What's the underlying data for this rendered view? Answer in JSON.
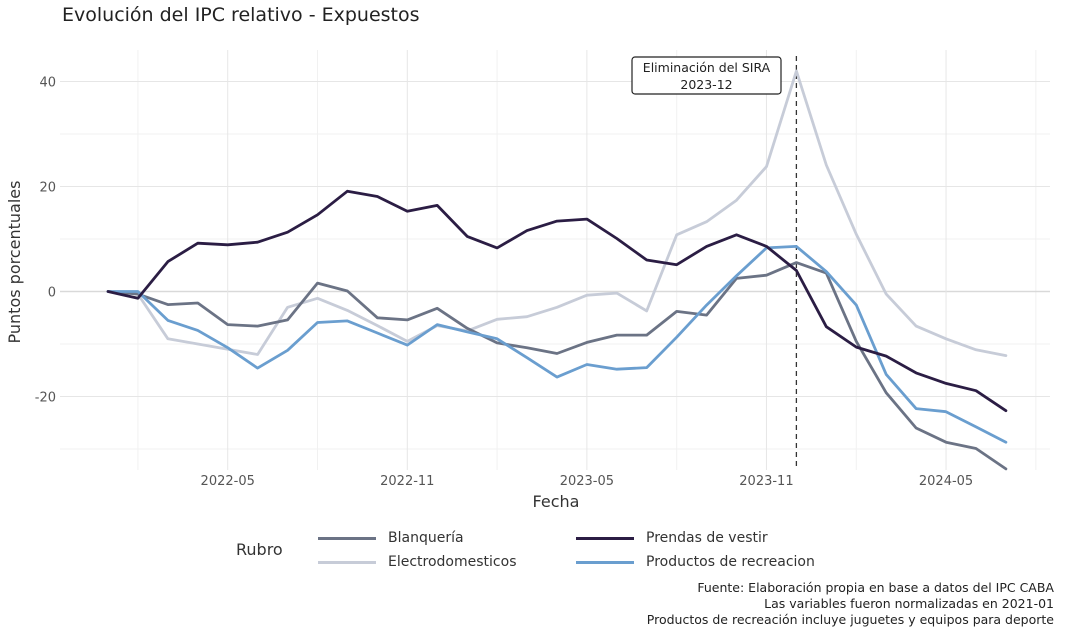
{
  "chart_data": {
    "type": "line",
    "title": "Evolución del IPC relativo - Expuestos",
    "xlabel": "Fecha",
    "ylabel": "Puntos porcentuales",
    "x": [
      "2022-01",
      "2022-02",
      "2022-03",
      "2022-04",
      "2022-05",
      "2022-06",
      "2022-07",
      "2022-08",
      "2022-09",
      "2022-10",
      "2022-11",
      "2022-12",
      "2023-01",
      "2023-02",
      "2023-03",
      "2023-04",
      "2023-05",
      "2023-06",
      "2023-07",
      "2023-08",
      "2023-09",
      "2023-10",
      "2023-11",
      "2023-12",
      "2024-01",
      "2024-02",
      "2024-03",
      "2024-04",
      "2024-05",
      "2024-06",
      "2024-07"
    ],
    "x_ticks": [
      "2022-05",
      "2022-11",
      "2023-05",
      "2023-11",
      "2024-05"
    ],
    "y_ticks": [
      -20,
      0,
      20,
      40
    ],
    "ylim": [
      -34,
      46
    ],
    "series": [
      {
        "name": "Blanquería",
        "color": "#6b7385",
        "values": [
          0,
          -0.5,
          -2.5,
          -2.2,
          -6.3,
          -6.6,
          -5.4,
          1.6,
          0.1,
          -5,
          -5.4,
          -3.2,
          -7,
          -9.8,
          -10.7,
          -11.8,
          -9.7,
          -8.3,
          -8.3,
          -3.8,
          -4.5,
          2.5,
          3.1,
          5.5,
          3.5,
          -9.5,
          -19.3,
          -26,
          -28.7,
          -29.9,
          -33.8
        ]
      },
      {
        "name": "Electrodomesticos",
        "color": "#c7ccd8",
        "values": [
          0,
          -0.5,
          -9,
          -10,
          -11,
          -12,
          -3,
          -1.3,
          -3.6,
          -6.5,
          -9.5,
          -6.5,
          -7.5,
          -5.3,
          -4.8,
          -3,
          -0.7,
          -0.3,
          -3.7,
          10.8,
          13.3,
          17.4,
          23.8,
          42,
          24.1,
          10.9,
          -0.5,
          -6.6,
          -9,
          -11.1,
          -12.2
        ]
      },
      {
        "name": "Prendas de vestir",
        "color": "#2b1d44",
        "values": [
          0,
          -1.3,
          5.7,
          9.2,
          8.9,
          9.4,
          11.3,
          14.6,
          19.1,
          18.1,
          15.3,
          16.4,
          10.5,
          8.3,
          11.6,
          13.4,
          13.8,
          10.1,
          6,
          5.1,
          8.6,
          10.8,
          8.6,
          4,
          -6.7,
          -10.6,
          -12.3,
          -15.5,
          -17.5,
          -18.9,
          -22.7
        ]
      },
      {
        "name": "Productos de recreacion",
        "color": "#6a9ecf",
        "values": [
          0,
          0,
          -5.5,
          -7.4,
          -10.7,
          -14.6,
          -11.2,
          -5.9,
          -5.6,
          -7.9,
          -10.2,
          -6.3,
          -7.7,
          -9,
          -12.6,
          -16.3,
          -13.9,
          -14.8,
          -14.5,
          -8.7,
          -2.6,
          3,
          8.3,
          8.6,
          3.8,
          -2.6,
          -15.8,
          -22.3,
          -22.9,
          -25.8,
          -28.7
        ]
      }
    ],
    "annotation": {
      "x": "2023-12",
      "label_line1": "Eliminación del SIRA",
      "label_line2": "2023-12"
    },
    "legend_title": "Rubro",
    "grid": true,
    "legend_position": "bottom"
  },
  "notes": [
    "Fuente: Elaboración propia en base a datos del IPC CABA",
    "Las variables fueron normalizadas en 2021-01",
    "Productos de recreación incluye juguetes y equipos para deporte"
  ]
}
